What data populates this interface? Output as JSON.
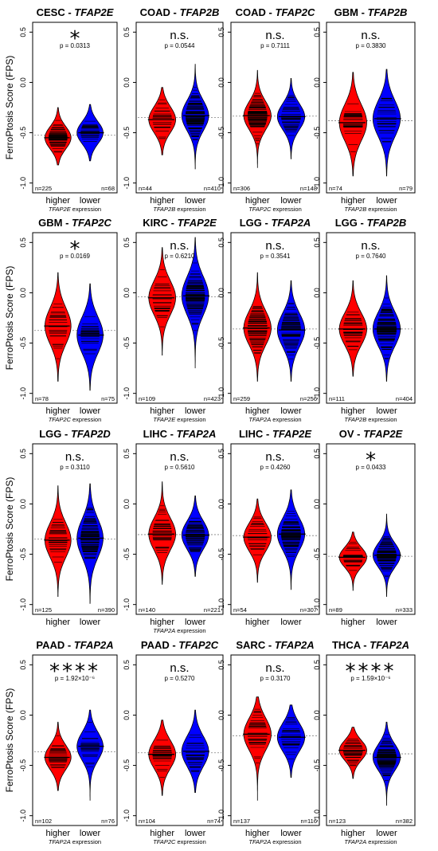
{
  "figure": {
    "ylabel": "FerroPtosis Score (FPS)",
    "group_labels": [
      "higher",
      "lower"
    ],
    "xlabel_suffix": " expression",
    "colors": {
      "higher": "#ff0000",
      "lower": "#0000ff",
      "stripes": "#000000",
      "reference_line": "#808080"
    }
  },
  "chart_data": [
    {
      "type": "beanplot",
      "title": "CESC",
      "gene": "TFAP2E",
      "significance": "*",
      "p_value": "p = 0.0313",
      "ylim": [
        -1.05,
        0.55
      ],
      "yticks": [
        -1.0,
        -0.5,
        0.0,
        0.5
      ],
      "show_xlabel": true,
      "series": [
        {
          "name": "higher",
          "n": "n=225",
          "median": -0.55,
          "min": -0.82,
          "max": -0.25,
          "spread": 0.11
        },
        {
          "name": "lower",
          "n": "n=68",
          "median": -0.5,
          "min": -0.78,
          "max": -0.22,
          "spread": 0.11
        }
      ]
    },
    {
      "type": "beanplot",
      "title": "COAD",
      "gene": "TFAP2B",
      "significance": "n.s.",
      "p_value": "p = 0.0544",
      "ylim": [
        -1.05,
        0.55
      ],
      "yticks": [
        -1.0,
        -0.5,
        0.0,
        0.5
      ],
      "show_xlabel": true,
      "series": [
        {
          "name": "higher",
          "n": "n=44",
          "median": -0.37,
          "min": -0.72,
          "max": -0.05,
          "spread": 0.13
        },
        {
          "name": "lower",
          "n": "n=410",
          "median": -0.33,
          "min": -0.86,
          "max": 0.18,
          "spread": 0.15
        }
      ]
    },
    {
      "type": "beanplot",
      "title": "COAD",
      "gene": "TFAP2C",
      "significance": "n.s.",
      "p_value": "p = 0.7111",
      "ylim": [
        -1.05,
        0.55
      ],
      "yticks": [
        -1.0,
        -0.5,
        0.0,
        0.5
      ],
      "show_xlabel": true,
      "series": [
        {
          "name": "higher",
          "n": "n=306",
          "median": -0.33,
          "min": -0.85,
          "max": 0.12,
          "spread": 0.14
        },
        {
          "name": "lower",
          "n": "n=148",
          "median": -0.34,
          "min": -0.76,
          "max": 0.04,
          "spread": 0.13
        }
      ]
    },
    {
      "type": "beanplot",
      "title": "GBM",
      "gene": "TFAP2B",
      "significance": "n.s.",
      "p_value": "p = 0.3830",
      "ylim": [
        -1.05,
        0.55
      ],
      "yticks": [
        -1.0,
        -0.5,
        0.0,
        0.5
      ],
      "show_xlabel": true,
      "series": [
        {
          "name": "higher",
          "n": "n=74",
          "median": -0.4,
          "min": -0.93,
          "max": 0.1,
          "spread": 0.18
        },
        {
          "name": "lower",
          "n": "n=79",
          "median": -0.36,
          "min": -0.93,
          "max": 0.13,
          "spread": 0.18
        }
      ]
    },
    {
      "type": "beanplot",
      "title": "GBM",
      "gene": "TFAP2C",
      "significance": "*",
      "p_value": "p = 0.0169",
      "ylim": [
        -1.05,
        0.55
      ],
      "yticks": [
        -1.0,
        -0.5,
        0.0,
        0.5
      ],
      "show_xlabel": true,
      "series": [
        {
          "name": "higher",
          "n": "n=78",
          "median": -0.33,
          "min": -0.88,
          "max": 0.2,
          "spread": 0.18
        },
        {
          "name": "lower",
          "n": "n=75",
          "median": -0.42,
          "min": -0.97,
          "max": 0.09,
          "spread": 0.18
        }
      ]
    },
    {
      "type": "beanplot",
      "title": "KIRC",
      "gene": "TFAP2E",
      "significance": "n.s.",
      "p_value": "p = 0.6210",
      "ylim": [
        -1.05,
        0.55
      ],
      "yticks": [
        -1.0,
        -0.5,
        0.0,
        0.5
      ],
      "show_xlabel": true,
      "series": [
        {
          "name": "higher",
          "n": "n=109",
          "median": -0.05,
          "min": -0.62,
          "max": 0.45,
          "spread": 0.17
        },
        {
          "name": "lower",
          "n": "n=423",
          "median": -0.03,
          "min": -0.75,
          "max": 0.55,
          "spread": 0.19
        }
      ]
    },
    {
      "type": "beanplot",
      "title": "LGG",
      "gene": "TFAP2A",
      "significance": "n.s.",
      "p_value": "p = 0.3541",
      "ylim": [
        -1.05,
        0.55
      ],
      "yticks": [
        -1.0,
        -0.5,
        0.0,
        0.5
      ],
      "show_xlabel": true,
      "series": [
        {
          "name": "higher",
          "n": "n=259",
          "median": -0.35,
          "min": -0.88,
          "max": 0.2,
          "spread": 0.17
        },
        {
          "name": "lower",
          "n": "n=256",
          "median": -0.37,
          "min": -0.88,
          "max": 0.12,
          "spread": 0.17
        }
      ]
    },
    {
      "type": "beanplot",
      "title": "LGG",
      "gene": "TFAP2B",
      "significance": "n.s.",
      "p_value": "p = 0.7640",
      "ylim": [
        -1.05,
        0.55
      ],
      "yticks": [
        -1.0,
        -0.5,
        0.0,
        0.5
      ],
      "show_xlabel": true,
      "series": [
        {
          "name": "higher",
          "n": "n=111",
          "median": -0.36,
          "min": -0.83,
          "max": 0.12,
          "spread": 0.16
        },
        {
          "name": "lower",
          "n": "n=404",
          "median": -0.36,
          "min": -0.88,
          "max": 0.17,
          "spread": 0.17
        }
      ]
    },
    {
      "type": "beanplot",
      "title": "LGG",
      "gene": "TFAP2D",
      "significance": "n.s.",
      "p_value": "p = 0.3110",
      "ylim": [
        -1.05,
        0.55
      ],
      "yticks": [
        -1.0,
        -0.5,
        0.0,
        0.5
      ],
      "show_xlabel": false,
      "series": [
        {
          "name": "higher",
          "n": "n=125",
          "median": -0.36,
          "min": -0.92,
          "max": 0.18,
          "spread": 0.17
        },
        {
          "name": "lower",
          "n": "n=390",
          "median": -0.34,
          "min": -0.99,
          "max": 0.2,
          "spread": 0.19
        }
      ]
    },
    {
      "type": "beanplot",
      "title": "LIHC",
      "gene": "TFAP2A",
      "significance": "n.s.",
      "p_value": "p = 0.5610",
      "ylim": [
        -1.05,
        0.55
      ],
      "yticks": [
        -1.0,
        -0.5,
        0.0,
        0.5
      ],
      "show_xlabel": true,
      "series": [
        {
          "name": "higher",
          "n": "n=140",
          "median": -0.3,
          "min": -0.8,
          "max": 0.22,
          "spread": 0.16
        },
        {
          "name": "lower",
          "n": "n=221",
          "median": -0.31,
          "min": -0.72,
          "max": 0.08,
          "spread": 0.14
        }
      ]
    },
    {
      "type": "beanplot",
      "title": "LIHC",
      "gene": "TFAP2E",
      "significance": "n.s.",
      "p_value": "p = 0.4260",
      "ylim": [
        -1.05,
        0.55
      ],
      "yticks": [
        -1.0,
        -0.5,
        0.0,
        0.5
      ],
      "show_xlabel": false,
      "series": [
        {
          "name": "higher",
          "n": "n=54",
          "median": -0.33,
          "min": -0.78,
          "max": 0.05,
          "spread": 0.14
        },
        {
          "name": "lower",
          "n": "n=307",
          "median": -0.3,
          "min": -0.85,
          "max": 0.14,
          "spread": 0.16
        }
      ]
    },
    {
      "type": "beanplot",
      "title": "OV",
      "gene": "TFAP2E",
      "significance": "*",
      "p_value": "p = 0.0433",
      "ylim": [
        -1.05,
        0.55
      ],
      "yticks": [
        -1.0,
        -0.5,
        0.0,
        0.5
      ],
      "show_xlabel": false,
      "series": [
        {
          "name": "higher",
          "n": "n=89",
          "median": -0.53,
          "min": -0.86,
          "max": -0.28,
          "spread": 0.1
        },
        {
          "name": "lower",
          "n": "n=333",
          "median": -0.51,
          "min": -0.92,
          "max": -0.1,
          "spread": 0.12
        }
      ]
    },
    {
      "type": "beanplot",
      "title": "PAAD",
      "gene": "TFAP2A",
      "significance": "****",
      "p_value": "p = 1.92×10⁻⁶",
      "ylim": [
        -1.05,
        0.55
      ],
      "yticks": [
        -1.0,
        -0.5,
        0.0,
        0.5
      ],
      "show_xlabel": true,
      "series": [
        {
          "name": "higher",
          "n": "n=102",
          "median": -0.42,
          "min": -0.75,
          "max": -0.07,
          "spread": 0.12
        },
        {
          "name": "lower",
          "n": "n=76",
          "median": -0.31,
          "min": -0.85,
          "max": 0.05,
          "spread": 0.14
        }
      ]
    },
    {
      "type": "beanplot",
      "title": "PAAD",
      "gene": "TFAP2C",
      "significance": "n.s.",
      "p_value": "p = 0.5270",
      "ylim": [
        -1.05,
        0.55
      ],
      "yticks": [
        -1.0,
        -0.5,
        0.0,
        0.5
      ],
      "show_xlabel": true,
      "series": [
        {
          "name": "higher",
          "n": "n=104",
          "median": -0.39,
          "min": -0.8,
          "max": -0.05,
          "spread": 0.14
        },
        {
          "name": "lower",
          "n": "n=74",
          "median": -0.36,
          "min": -0.77,
          "max": 0.05,
          "spread": 0.15
        }
      ]
    },
    {
      "type": "beanplot",
      "title": "SARC",
      "gene": "TFAP2A",
      "significance": "n.s.",
      "p_value": "p = 0.3170",
      "ylim": [
        -1.05,
        0.55
      ],
      "yticks": [
        -1.0,
        -0.5,
        0.0,
        0.5
      ],
      "show_xlabel": true,
      "series": [
        {
          "name": "higher",
          "n": "n=137",
          "median": -0.19,
          "min": -0.85,
          "max": 0.18,
          "spread": 0.16
        },
        {
          "name": "lower",
          "n": "n=116",
          "median": -0.22,
          "min": -0.62,
          "max": 0.1,
          "spread": 0.14
        }
      ]
    },
    {
      "type": "beanplot",
      "title": "THCA",
      "gene": "TFAP2A",
      "significance": "****",
      "p_value": "p = 1.59×10⁻⁶",
      "ylim": [
        -1.05,
        0.55
      ],
      "yticks": [
        -1.0,
        -0.5,
        0.0,
        0.5
      ],
      "show_xlabel": true,
      "series": [
        {
          "name": "higher",
          "n": "n=123",
          "median": -0.35,
          "min": -0.63,
          "max": -0.12,
          "spread": 0.1
        },
        {
          "name": "lower",
          "n": "n=382",
          "median": -0.42,
          "min": -0.9,
          "max": -0.07,
          "spread": 0.13
        }
      ]
    }
  ]
}
